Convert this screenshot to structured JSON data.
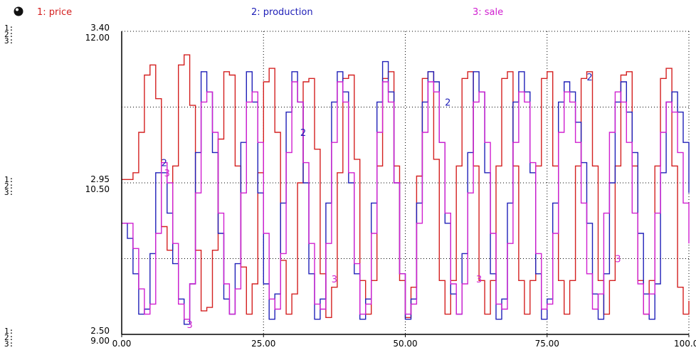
{
  "chart_data": {
    "type": "line",
    "title": "",
    "xlabel": "",
    "ylabel": "",
    "xlim": [
      0,
      100
    ],
    "x_ticks": [
      "0.00",
      "25.00",
      "50.00",
      "75.00",
      "100.00"
    ],
    "axes": [
      {
        "series": "price",
        "ylim": [
          2.5,
          3.4
        ],
        "ticks": [
          "3.40",
          "2.95",
          "2.50"
        ]
      },
      {
        "series": "production",
        "ylim": [
          9.0,
          12.0
        ],
        "ticks": [
          "12.00",
          "10.50",
          "9.00"
        ]
      },
      {
        "series": "sale",
        "ylim": [
          9.0,
          12.0
        ],
        "ticks": []
      }
    ],
    "side_labels": [
      "1:",
      "2:",
      "3:"
    ],
    "series": [
      {
        "name": "1: price",
        "color": "#d42020",
        "marker": "1",
        "x": [
          0,
          1,
          2,
          3,
          4,
          5,
          6,
          7,
          8,
          9,
          10,
          11,
          12,
          13,
          14,
          15,
          16,
          17,
          18,
          19,
          20,
          21,
          22,
          23,
          24,
          25,
          26,
          27,
          28,
          29,
          30,
          31,
          32,
          33,
          34,
          35,
          36,
          37,
          38,
          39,
          40,
          41,
          42,
          43,
          44,
          45,
          46,
          47,
          48,
          49,
          50,
          51,
          52,
          53,
          54,
          55,
          56,
          57,
          58,
          59,
          60,
          61,
          62,
          63,
          64,
          65,
          66,
          67,
          68,
          69,
          70,
          71,
          72,
          73,
          74,
          75,
          76,
          77,
          78,
          79,
          80,
          81,
          82,
          83,
          84,
          85,
          86,
          87,
          88,
          89,
          90,
          91,
          92,
          93,
          94,
          95,
          96,
          97,
          98,
          99,
          100
        ],
        "y": [
          2.96,
          2.96,
          2.98,
          3.1,
          3.27,
          3.3,
          3.2,
          2.82,
          2.75,
          3.0,
          3.3,
          3.33,
          3.18,
          2.75,
          2.57,
          2.58,
          2.75,
          3.08,
          3.28,
          3.27,
          3.0,
          2.7,
          2.56,
          2.65,
          2.98,
          3.25,
          3.29,
          3.1,
          2.72,
          2.56,
          2.62,
          2.95,
          3.25,
          3.26,
          3.05,
          2.68,
          2.55,
          2.64,
          2.98,
          3.26,
          3.27,
          3.02,
          2.66,
          2.56,
          2.66,
          3.0,
          3.26,
          3.28,
          3.0,
          2.66,
          2.55,
          2.64,
          2.97,
          3.26,
          3.28,
          3.02,
          2.66,
          2.56,
          2.66,
          3.0,
          3.26,
          3.28,
          3.0,
          2.66,
          2.56,
          2.66,
          3.0,
          3.26,
          3.28,
          3.0,
          2.66,
          2.56,
          2.66,
          3.0,
          3.26,
          3.28,
          3.0,
          2.66,
          2.56,
          2.66,
          3.0,
          3.26,
          3.28,
          3.0,
          2.66,
          2.56,
          2.66,
          3.0,
          3.27,
          3.28,
          3.0,
          2.66,
          2.56,
          2.66,
          3.0,
          3.26,
          3.29,
          3.0,
          2.64,
          2.56,
          2.6
        ]
      },
      {
        "name": "2: production",
        "color": "#2020b8",
        "marker": "2",
        "x": [
          0,
          1,
          2,
          3,
          4,
          5,
          6,
          7,
          8,
          9,
          10,
          11,
          12,
          13,
          14,
          15,
          16,
          17,
          18,
          19,
          20,
          21,
          22,
          23,
          24,
          25,
          26,
          27,
          28,
          29,
          30,
          31,
          32,
          33,
          34,
          35,
          36,
          37,
          38,
          39,
          40,
          41,
          42,
          43,
          44,
          45,
          46,
          47,
          48,
          49,
          50,
          51,
          52,
          53,
          54,
          55,
          56,
          57,
          58,
          59,
          60,
          61,
          62,
          63,
          64,
          65,
          66,
          67,
          68,
          69,
          70,
          71,
          72,
          73,
          74,
          75,
          76,
          77,
          78,
          79,
          80,
          81,
          82,
          83,
          84,
          85,
          86,
          87,
          88,
          89,
          90,
          91,
          92,
          93,
          94,
          95,
          96,
          97,
          98,
          99,
          100
        ],
        "y": [
          10.1,
          9.95,
          9.6,
          9.2,
          9.25,
          9.8,
          10.6,
          10.6,
          10.2,
          9.7,
          9.35,
          9.1,
          9.5,
          10.8,
          11.6,
          11.4,
          10.8,
          10.0,
          9.35,
          9.2,
          9.7,
          10.9,
          11.6,
          11.3,
          10.4,
          9.5,
          9.15,
          9.4,
          10.3,
          11.2,
          11.6,
          11.3,
          10.5,
          9.6,
          9.15,
          9.35,
          10.3,
          11.3,
          11.6,
          11.4,
          10.5,
          9.6,
          9.15,
          9.35,
          10.3,
          11.3,
          11.7,
          11.4,
          10.5,
          9.6,
          9.15,
          9.35,
          10.3,
          11.3,
          11.6,
          11.5,
          10.9,
          10.1,
          9.4,
          9.2,
          9.8,
          10.8,
          11.6,
          11.4,
          10.6,
          9.6,
          9.15,
          9.35,
          10.3,
          11.3,
          11.6,
          11.4,
          10.6,
          9.6,
          9.15,
          9.35,
          10.3,
          11.3,
          11.5,
          11.4,
          11.1,
          10.7,
          10.1,
          9.4,
          9.15,
          9.6,
          10.5,
          11.3,
          11.5,
          11.2,
          10.8,
          10.0,
          9.4,
          9.15,
          9.5,
          10.6,
          11.3,
          11.4,
          11.2,
          10.9,
          10.4
        ]
      },
      {
        "name": "3: sale",
        "color": "#d020d0",
        "marker": "3",
        "x": [
          0,
          1,
          2,
          3,
          4,
          5,
          6,
          7,
          8,
          9,
          10,
          11,
          12,
          13,
          14,
          15,
          16,
          17,
          18,
          19,
          20,
          21,
          22,
          23,
          24,
          25,
          26,
          27,
          28,
          29,
          30,
          31,
          32,
          33,
          34,
          35,
          36,
          37,
          38,
          39,
          40,
          41,
          42,
          43,
          44,
          45,
          46,
          47,
          48,
          49,
          50,
          51,
          52,
          53,
          54,
          55,
          56,
          57,
          58,
          59,
          60,
          61,
          62,
          63,
          64,
          65,
          66,
          67,
          68,
          69,
          70,
          71,
          72,
          73,
          74,
          75,
          76,
          77,
          78,
          79,
          80,
          81,
          82,
          83,
          84,
          85,
          86,
          87,
          88,
          89,
          90,
          91,
          92,
          93,
          94,
          95,
          96,
          97,
          98,
          99,
          100
        ],
        "y": [
          10.1,
          10.1,
          9.85,
          9.45,
          9.2,
          9.3,
          10.0,
          10.7,
          10.5,
          9.9,
          9.3,
          9.15,
          9.5,
          10.4,
          11.3,
          11.4,
          11.0,
          10.2,
          9.5,
          9.2,
          9.45,
          10.4,
          11.3,
          11.4,
          10.9,
          10.0,
          9.35,
          9.25,
          9.8,
          10.8,
          11.5,
          11.3,
          10.7,
          9.9,
          9.3,
          9.25,
          9.9,
          10.9,
          11.5,
          11.3,
          10.6,
          9.7,
          9.2,
          9.3,
          10.0,
          11.0,
          11.5,
          11.3,
          10.5,
          9.6,
          9.2,
          9.3,
          10.1,
          11.0,
          11.5,
          11.4,
          10.9,
          10.2,
          9.5,
          9.2,
          9.5,
          10.4,
          11.3,
          11.4,
          10.9,
          10.0,
          9.3,
          9.25,
          9.9,
          10.9,
          11.4,
          11.3,
          10.7,
          9.8,
          9.25,
          9.3,
          10.0,
          11.0,
          11.4,
          11.3,
          10.9,
          10.3,
          9.6,
          9.25,
          9.4,
          10.2,
          11.0,
          11.4,
          11.3,
          10.9,
          10.2,
          9.5,
          9.2,
          9.4,
          10.2,
          11.0,
          11.3,
          11.2,
          10.8,
          10.3,
          9.9
        ]
      }
    ],
    "point_labels": [
      {
        "text": "2",
        "series": "production",
        "x": 7.5,
        "y": 10.7
      },
      {
        "text": "3",
        "series": "sale",
        "x": 8.0,
        "y": 10.6
      },
      {
        "text": "3",
        "series": "sale",
        "x": 12.0,
        "y": 9.1
      },
      {
        "text": "2",
        "series": "production",
        "x": 32.0,
        "y": 11.0
      },
      {
        "text": "3",
        "series": "sale",
        "x": 37.5,
        "y": 9.55
      },
      {
        "text": "2",
        "series": "production",
        "x": 57.5,
        "y": 11.3
      },
      {
        "text": "3",
        "series": "sale",
        "x": 63.0,
        "y": 9.55
      },
      {
        "text": "2",
        "series": "production",
        "x": 82.5,
        "y": 11.55
      },
      {
        "text": "3",
        "series": "sale",
        "x": 87.5,
        "y": 9.75
      }
    ]
  }
}
